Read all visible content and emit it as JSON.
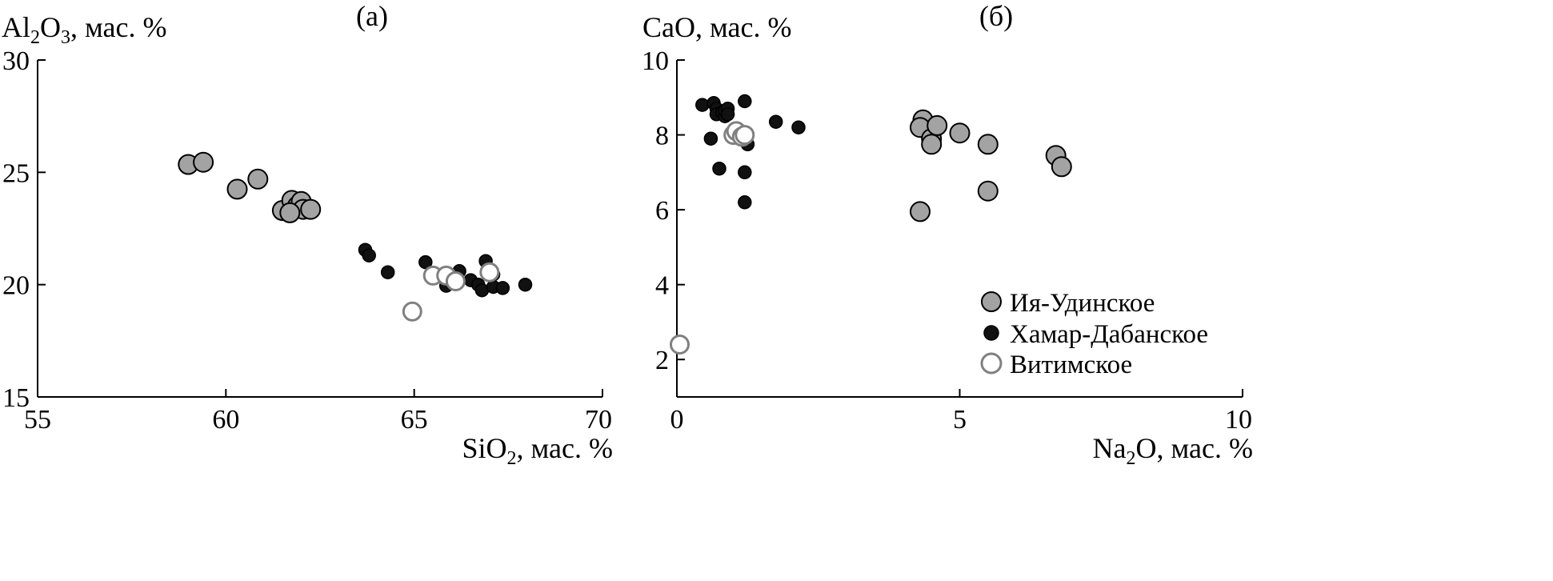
{
  "series_styles": {
    "iya_udinskoe": {
      "fill": "#a3a3a3",
      "stroke": "#000000"
    },
    "khamar_dabanskoe": {
      "fill": "#111111",
      "stroke": "#000000"
    },
    "vitimskoe": {
      "fill": "#ffffff",
      "stroke": "#808080"
    }
  },
  "legend": {
    "items": [
      {
        "key": "iya_udinskoe",
        "label": "Ия-Удинское"
      },
      {
        "key": "khamar_dabanskoe",
        "label": "Хамар-Дабанское"
      },
      {
        "key": "vitimskoe",
        "label": "Витимское"
      }
    ]
  },
  "chart_data": [
    {
      "type": "scatter",
      "panel_label": "(а)",
      "xlabel": {
        "main": "SiO",
        "sub": "2",
        "rest": ", мас. %"
      },
      "ylabel": {
        "main": "Al",
        "sub1": "2",
        "mid": "O",
        "sub2": "3",
        "rest": ", мас. %"
      },
      "xlim": [
        55,
        70
      ],
      "ylim": [
        15,
        30
      ],
      "xticks": [
        "55",
        "60",
        "65",
        "70"
      ],
      "yticks": [
        "15",
        "20",
        "25",
        "30"
      ],
      "series": [
        {
          "name": "Ия-Удинское",
          "key": "iya_udinskoe",
          "points": [
            [
              59.0,
              25.35
            ],
            [
              59.4,
              25.45
            ],
            [
              60.3,
              24.25
            ],
            [
              60.85,
              24.7
            ],
            [
              61.5,
              23.3
            ],
            [
              61.75,
              23.75
            ],
            [
              61.9,
              23.5
            ],
            [
              62.0,
              23.7
            ],
            [
              62.05,
              23.35
            ],
            [
              61.7,
              23.2
            ],
            [
              62.25,
              23.35
            ]
          ]
        },
        {
          "name": "Хамар-Дабанское",
          "key": "khamar_dabanskoe",
          "points": [
            [
              63.7,
              21.55
            ],
            [
              63.8,
              21.3
            ],
            [
              64.3,
              20.55
            ],
            [
              65.3,
              21.0
            ],
            [
              65.85,
              19.95
            ],
            [
              66.2,
              20.6
            ],
            [
              66.5,
              20.2
            ],
            [
              66.7,
              20.0
            ],
            [
              66.8,
              19.75
            ],
            [
              66.9,
              21.05
            ],
            [
              67.1,
              20.45
            ],
            [
              67.1,
              19.9
            ],
            [
              67.35,
              19.85
            ],
            [
              67.95,
              20.0
            ]
          ]
        },
        {
          "name": "Витимское",
          "key": "vitimskoe",
          "points": [
            [
              64.95,
              18.8
            ],
            [
              65.5,
              20.4
            ],
            [
              65.85,
              20.4
            ],
            [
              66.1,
              20.15
            ],
            [
              67.0,
              20.55
            ]
          ]
        }
      ]
    },
    {
      "type": "scatter",
      "panel_label": "(б)",
      "xlabel": {
        "main": "Na",
        "sub": "2",
        "rest": "O, мас. %"
      },
      "ylabel": {
        "main": "CaO",
        "rest": ", мас. %"
      },
      "xlim": [
        0,
        10
      ],
      "ylim": [
        1,
        10
      ],
      "xticks": [
        "0",
        "5",
        "10"
      ],
      "yticks": [
        "2",
        "4",
        "6",
        "8",
        "10"
      ],
      "series": [
        {
          "name": "Ия-Удинское",
          "key": "iya_udinskoe",
          "points": [
            [
              4.35,
              8.4
            ],
            [
              4.3,
              8.2
            ],
            [
              4.5,
              7.9
            ],
            [
              4.5,
              7.75
            ],
            [
              4.6,
              8.25
            ],
            [
              5.0,
              8.05
            ],
            [
              5.5,
              7.75
            ],
            [
              5.5,
              6.5
            ],
            [
              6.7,
              7.45
            ],
            [
              6.8,
              7.15
            ],
            [
              4.3,
              5.95
            ]
          ]
        },
        {
          "name": "Хамар-Дабанское",
          "key": "khamar_dabanskoe",
          "points": [
            [
              0.45,
              8.8
            ],
            [
              0.65,
              8.85
            ],
            [
              0.7,
              8.7
            ],
            [
              0.7,
              8.55
            ],
            [
              0.8,
              8.6
            ],
            [
              0.85,
              8.5
            ],
            [
              0.85,
              8.65
            ],
            [
              0.9,
              8.7
            ],
            [
              1.2,
              8.9
            ],
            [
              0.9,
              8.55
            ],
            [
              1.75,
              8.35
            ],
            [
              2.15,
              8.2
            ],
            [
              0.6,
              7.9
            ],
            [
              1.25,
              7.75
            ],
            [
              0.75,
              7.1
            ],
            [
              1.2,
              7.0
            ],
            [
              1.2,
              6.2
            ]
          ]
        },
        {
          "name": "Витимское",
          "key": "vitimskoe",
          "points": [
            [
              0.05,
              2.4
            ],
            [
              1.0,
              8.0
            ],
            [
              1.05,
              8.1
            ],
            [
              1.15,
              7.95
            ],
            [
              1.2,
              8.0
            ]
          ]
        }
      ]
    }
  ]
}
